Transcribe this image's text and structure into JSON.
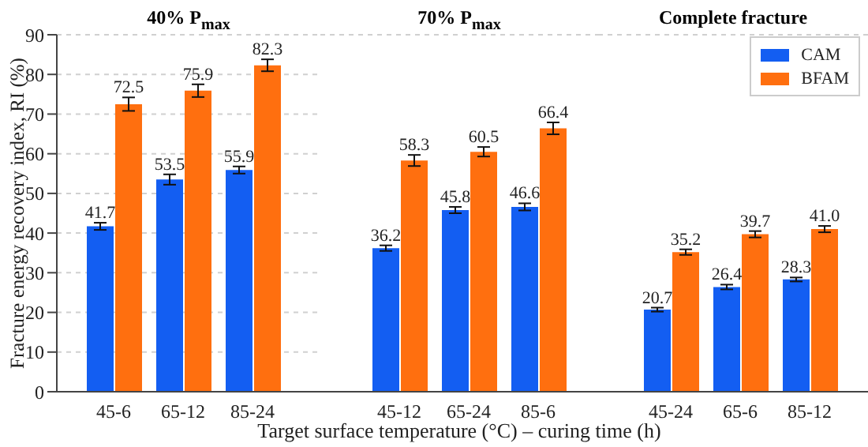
{
  "chart_data": [
    {
      "type": "bar",
      "title": "40% P$_{max}$",
      "ylabel": "Fracture energy recovery index, RI (%)",
      "categories": [
        "45-6",
        "65-12",
        "85-24"
      ],
      "series": [
        {
          "color": "#135ef2",
          "values": [
            41.7,
            53.5,
            55.9
          ],
          "errors": [
            0.9,
            1.3,
            0.9
          ]
        },
        {
          "color": "#ff6f0f",
          "values": [
            72.5,
            75.9,
            82.3
          ],
          "errors": [
            1.7,
            1.6,
            1.5
          ]
        }
      ],
      "ylim": [
        0,
        90
      ],
      "yticks": [
        0,
        10,
        20,
        30,
        40,
        50,
        60,
        70,
        80,
        90
      ],
      "grid": "y",
      "data_labels": true
    },
    {
      "type": "bar",
      "title": "70% P$_{max}$",
      "xlabel": "Target surface temperature (°C) – curing time (h)",
      "categories": [
        "45-12",
        "65-24",
        "85-6"
      ],
      "series": [
        {
          "color": "#135ef2",
          "values": [
            36.2,
            45.8,
            46.6
          ],
          "errors": [
            0.7,
            0.8,
            0.9
          ]
        },
        {
          "color": "#ff6f0f",
          "values": [
            58.3,
            60.5,
            66.4
          ],
          "errors": [
            1.4,
            1.2,
            1.5
          ]
        }
      ],
      "ylim": [
        0,
        90
      ],
      "yticks": [
        0,
        10,
        20,
        30,
        40,
        50,
        60,
        70,
        80,
        90
      ],
      "grid": "y",
      "data_labels": true,
      "tick_labels": "x"
    },
    {
      "type": "bar",
      "title": "Complete fracture",
      "categories": [
        "45-24",
        "65-6",
        "85-12"
      ],
      "series": [
        {
          "name": "CAM",
          "color": "#135ef2",
          "values": [
            20.7,
            26.4,
            28.3
          ],
          "errors": [
            0.5,
            0.6,
            0.5
          ],
          "value_labels": [
            "20.7",
            "26.4",
            "28.3"
          ]
        },
        {
          "name": "BFAM",
          "color": "#ff6f0f",
          "values": [
            35.2,
            39.7,
            41.0
          ],
          "errors": [
            0.7,
            0.8,
            0.8
          ],
          "value_labels": [
            "35.2",
            "39.7",
            "41.0"
          ]
        }
      ],
      "ylim": [
        0,
        90
      ],
      "yticks": [
        0,
        10,
        20,
        30,
        40,
        50,
        60,
        70,
        80,
        90
      ],
      "grid": "y",
      "tick_labels": "x",
      "legend": "top right",
      "data_labels": true
    }
  ]
}
